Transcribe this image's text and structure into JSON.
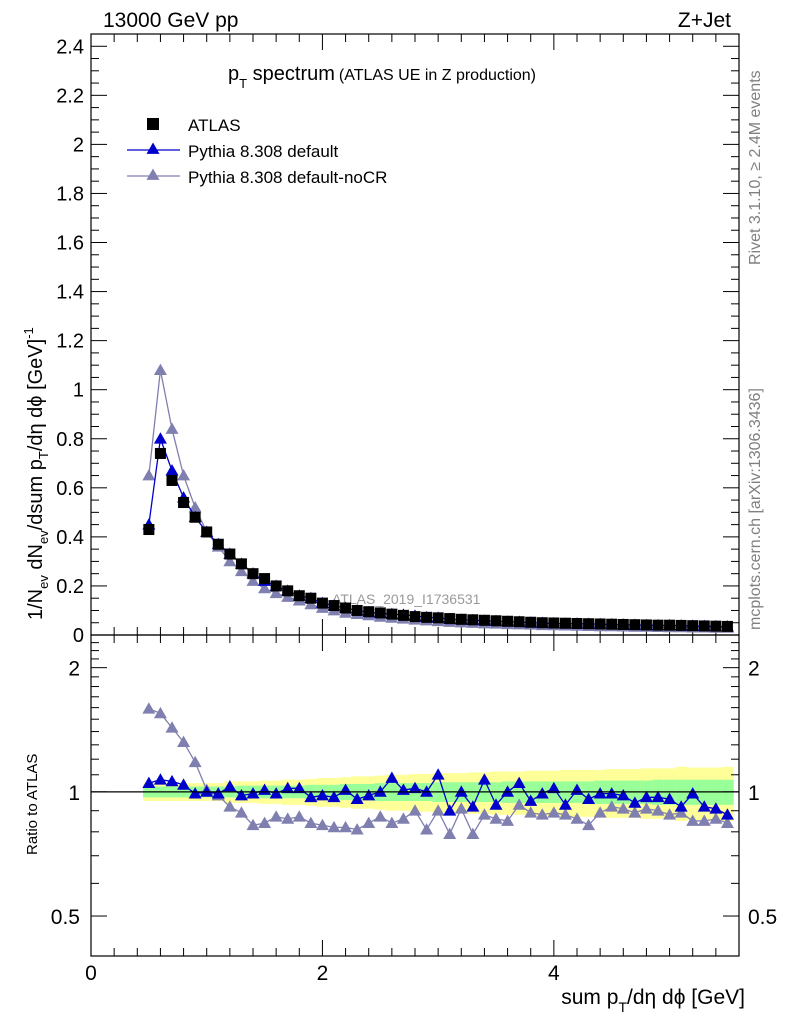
{
  "header": {
    "left": "13000 GeV pp",
    "right": "Z+Jet"
  },
  "side": {
    "rivet": "Rivet 3.1.10, ≥ 2.4M events",
    "mcplots": "mcplots.cern.ch [arXiv:1306.3436]"
  },
  "title": {
    "p": "p",
    "sub": "T",
    "word": " spectrum",
    "paren": "(ATLAS UE in Z production)"
  },
  "watermark": "ATLAS_2019_I1736531",
  "xlabel": {
    "a": "sum p",
    "sub": "T",
    "b": "/dη dϕ [GeV]"
  },
  "ylabel_main": {
    "a": "1/N",
    "sub1": "ev",
    "b": " dN",
    "sub2": "ev",
    "c": "/dsum p",
    "sub3": "T",
    "d": "/dη dϕ  [GeV]",
    "sup": "-1"
  },
  "ylabel_ratio": "Ratio to ATLAS",
  "legend": [
    {
      "name": "ATLAS",
      "marker": "square",
      "color": "#000000"
    },
    {
      "name": "Pythia 8.308 default",
      "marker": "triangle",
      "color": "#0000cc"
    },
    {
      "name": "Pythia 8.308 default-noCR",
      "marker": "triangle",
      "color": "#8080b0"
    }
  ],
  "chart_data": [
    {
      "type": "scatter",
      "title": "p_T spectrum (ATLAS UE in Z production)",
      "xlim": [
        0,
        5.6
      ],
      "ylim": [
        0,
        2.45
      ],
      "xticks": [
        "0",
        "2",
        "4"
      ],
      "yticks": [
        "0",
        "0.2",
        "0.4",
        "0.6",
        "0.8",
        "1",
        "1.2",
        "1.4",
        "1.6",
        "1.8",
        "2",
        "2.2",
        "2.4"
      ],
      "x": [
        0.5,
        0.6,
        0.7,
        0.8,
        0.9,
        1.0,
        1.1,
        1.2,
        1.3,
        1.4,
        1.5,
        1.6,
        1.7,
        1.8,
        1.9,
        2.0,
        2.1,
        2.2,
        2.3,
        2.4,
        2.5,
        2.6,
        2.7,
        2.8,
        2.9,
        3.0,
        3.1,
        3.2,
        3.3,
        3.4,
        3.5,
        3.6,
        3.7,
        3.8,
        3.9,
        4.0,
        4.1,
        4.2,
        4.3,
        4.4,
        4.5,
        4.6,
        4.7,
        4.8,
        4.9,
        5.0,
        5.1,
        5.2,
        5.3,
        5.4,
        5.5
      ],
      "series": [
        {
          "name": "ATLAS",
          "values": [
            0.43,
            0.74,
            0.63,
            0.54,
            0.48,
            0.42,
            0.37,
            0.33,
            0.29,
            0.25,
            0.23,
            0.2,
            0.18,
            0.16,
            0.15,
            0.13,
            0.12,
            0.11,
            0.1,
            0.095,
            0.09,
            0.085,
            0.08,
            0.075,
            0.072,
            0.07,
            0.067,
            0.064,
            0.062,
            0.06,
            0.058,
            0.056,
            0.054,
            0.052,
            0.05,
            0.049,
            0.048,
            0.047,
            0.046,
            0.045,
            0.044,
            0.043,
            0.042,
            0.041,
            0.04,
            0.04,
            0.039,
            0.038,
            0.037,
            0.036,
            0.035
          ]
        },
        {
          "name": "Pythia 8.308 default",
          "values": [
            0.45,
            0.8,
            0.67,
            0.56,
            0.48,
            0.42,
            0.37,
            0.33,
            0.29,
            0.25,
            0.22,
            0.2,
            0.18,
            0.16,
            0.15,
            0.13,
            0.12,
            0.11,
            0.1,
            0.092,
            0.088,
            0.085,
            0.082,
            0.078,
            0.072,
            0.07,
            0.064,
            0.062,
            0.06,
            0.058,
            0.056,
            0.054,
            0.053,
            0.05,
            0.049,
            0.047,
            0.046,
            0.046,
            0.045,
            0.044,
            0.043,
            0.042,
            0.041,
            0.04,
            0.039,
            0.039,
            0.038,
            0.037,
            0.036,
            0.035,
            0.034
          ]
        },
        {
          "name": "Pythia 8.308 default-noCR",
          "values": [
            0.65,
            1.08,
            0.84,
            0.65,
            0.52,
            0.42,
            0.36,
            0.3,
            0.26,
            0.22,
            0.19,
            0.17,
            0.155,
            0.14,
            0.125,
            0.11,
            0.1,
            0.09,
            0.085,
            0.08,
            0.074,
            0.07,
            0.066,
            0.062,
            0.059,
            0.056,
            0.053,
            0.051,
            0.049,
            0.047,
            0.046,
            0.044,
            0.043,
            0.042,
            0.04,
            0.039,
            0.038,
            0.037,
            0.036,
            0.035,
            0.035,
            0.034,
            0.033,
            0.033,
            0.032,
            0.031,
            0.031,
            0.03,
            0.03,
            0.029,
            0.029
          ]
        }
      ]
    },
    {
      "type": "scatter",
      "ylabel": "Ratio to ATLAS",
      "xlim": [
        0,
        5.6
      ],
      "ylim": [
        0.4,
        2.4
      ],
      "log_y": true,
      "yticks": [
        "0.5",
        "1",
        "2"
      ],
      "x": [
        0.5,
        0.6,
        0.7,
        0.8,
        0.9,
        1.0,
        1.1,
        1.2,
        1.3,
        1.4,
        1.5,
        1.6,
        1.7,
        1.8,
        1.9,
        2.0,
        2.1,
        2.2,
        2.3,
        2.4,
        2.5,
        2.6,
        2.7,
        2.8,
        2.9,
        3.0,
        3.1,
        3.2,
        3.3,
        3.4,
        3.5,
        3.6,
        3.7,
        3.8,
        3.9,
        4.0,
        4.1,
        4.2,
        4.3,
        4.4,
        4.5,
        4.6,
        4.7,
        4.8,
        4.9,
        5.0,
        5.1,
        5.2,
        5.3,
        5.4,
        5.5
      ],
      "band_inner": [
        0.03,
        0.03,
        0.03,
        0.03,
        0.03,
        0.03,
        0.03,
        0.03,
        0.035,
        0.035,
        0.035,
        0.035,
        0.035,
        0.035,
        0.04,
        0.04,
        0.04,
        0.045,
        0.045,
        0.045,
        0.05,
        0.05,
        0.05,
        0.05,
        0.05,
        0.055,
        0.055,
        0.055,
        0.055,
        0.055,
        0.055,
        0.06,
        0.06,
        0.06,
        0.06,
        0.06,
        0.06,
        0.06,
        0.06,
        0.065,
        0.065,
        0.065,
        0.065,
        0.065,
        0.07,
        0.07,
        0.07,
        0.07,
        0.07,
        0.07,
        0.07
      ],
      "band_outer": [
        0.05,
        0.05,
        0.05,
        0.05,
        0.05,
        0.05,
        0.05,
        0.06,
        0.06,
        0.06,
        0.065,
        0.065,
        0.07,
        0.07,
        0.075,
        0.08,
        0.08,
        0.085,
        0.09,
        0.09,
        0.095,
        0.1,
        0.1,
        0.105,
        0.105,
        0.11,
        0.11,
        0.11,
        0.115,
        0.115,
        0.12,
        0.12,
        0.12,
        0.125,
        0.125,
        0.125,
        0.13,
        0.13,
        0.13,
        0.13,
        0.135,
        0.135,
        0.135,
        0.14,
        0.14,
        0.14,
        0.15,
        0.145,
        0.145,
        0.145,
        0.15
      ],
      "series": [
        {
          "name": "Pythia 8.308 default",
          "values": [
            1.05,
            1.07,
            1.06,
            1.04,
            0.99,
            1.0,
            0.99,
            1.03,
            0.98,
            0.99,
            1.01,
            0.99,
            1.02,
            1.02,
            0.97,
            0.98,
            0.97,
            1.01,
            0.96,
            0.98,
            1.0,
            1.08,
            1.01,
            1.02,
            1.0,
            1.1,
            0.9,
            1.0,
            0.92,
            1.07,
            0.93,
            1.0,
            1.05,
            0.95,
            0.99,
            1.02,
            0.93,
            1.01,
            0.96,
            0.99,
            0.99,
            0.98,
            0.94,
            0.97,
            0.97,
            0.96,
            0.92,
            0.99,
            0.92,
            0.91,
            0.88
          ]
        },
        {
          "name": "Pythia 8.308 default-noCR",
          "values": [
            1.59,
            1.55,
            1.43,
            1.32,
            1.18,
            1.01,
            0.98,
            0.92,
            0.89,
            0.83,
            0.84,
            0.87,
            0.86,
            0.87,
            0.84,
            0.83,
            0.82,
            0.82,
            0.81,
            0.84,
            0.87,
            0.84,
            0.86,
            0.9,
            0.81,
            0.9,
            0.79,
            0.91,
            0.79,
            0.88,
            0.86,
            0.85,
            0.93,
            0.89,
            0.88,
            0.89,
            0.88,
            0.86,
            0.83,
            0.89,
            0.92,
            0.91,
            0.89,
            0.91,
            0.9,
            0.88,
            0.89,
            0.85,
            0.85,
            0.86,
            0.84
          ]
        }
      ]
    }
  ]
}
